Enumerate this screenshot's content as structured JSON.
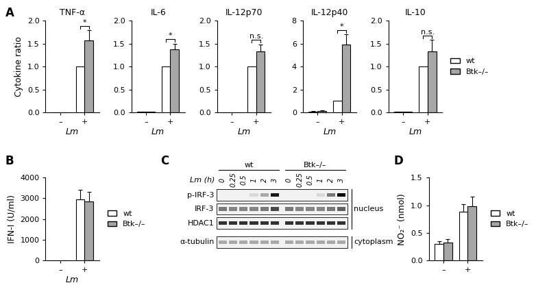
{
  "panel_labels": [
    "A",
    "B",
    "C",
    "D"
  ],
  "chart_data": [
    {
      "type": "bar",
      "title": "TNF-α",
      "categories": [
        "–",
        "+"
      ],
      "x_label": "Lm",
      "y_label": "Cytokine ratio",
      "ylim": [
        0,
        2
      ],
      "yticks": [
        {
          "value": 0,
          "label": "0.0"
        },
        0.5,
        {
          "value": 1,
          "label": "1.0"
        },
        1.5,
        {
          "value": 2,
          "label": "2.0"
        }
      ],
      "series": [
        {
          "color": "#ffffff",
          "values": [
            0,
            1.0
          ],
          "errors": [
            null,
            null
          ]
        },
        {
          "color": "#a6a6a6",
          "values": [
            0,
            1.57
          ],
          "errors": [
            null,
            0.22
          ]
        }
      ],
      "significance": "*"
    },
    {
      "type": "bar",
      "title": "IL-6",
      "categories": [
        "–",
        "+"
      ],
      "x_label": "Lm",
      "ylim": [
        0,
        2
      ],
      "yticks": [
        {
          "value": 0,
          "label": "0.0"
        },
        0.5,
        {
          "value": 1,
          "label": "1.0"
        },
        1.5,
        {
          "value": 2,
          "label": "2.0"
        }
      ],
      "series": [
        {
          "color": "#ffffff",
          "values": [
            0.01,
            1.0
          ],
          "errors": [
            null,
            null
          ]
        },
        {
          "color": "#a6a6a6",
          "values": [
            0.01,
            1.38
          ],
          "errors": [
            null,
            0.12
          ]
        }
      ],
      "significance": "*"
    },
    {
      "type": "bar",
      "title": "IL-12p70",
      "categories": [
        "–",
        "+"
      ],
      "x_label": "Lm",
      "ylim": [
        0,
        2
      ],
      "yticks": [
        {
          "value": 0,
          "label": "0.0"
        },
        0.5,
        {
          "value": 1,
          "label": "1.0"
        },
        1.5,
        {
          "value": 2,
          "label": "2.0"
        }
      ],
      "series": [
        {
          "color": "#ffffff",
          "values": [
            0,
            1.0
          ],
          "errors": [
            null,
            null
          ]
        },
        {
          "color": "#a6a6a6",
          "values": [
            0,
            1.33
          ],
          "errors": [
            null,
            0.15
          ]
        }
      ],
      "significance": "n.s."
    },
    {
      "type": "bar",
      "title": "IL-12p40",
      "categories": [
        "–",
        "+"
      ],
      "x_label": "Lm",
      "ylim": [
        0,
        8
      ],
      "yticks": [
        0,
        2,
        4,
        6,
        8
      ],
      "series": [
        {
          "color": "#ffffff",
          "values": [
            0.08,
            1.0
          ],
          "errors": [
            0.05,
            null
          ]
        },
        {
          "color": "#a6a6a6",
          "values": [
            0.1,
            5.9
          ],
          "errors": [
            0.06,
            0.9
          ]
        }
      ],
      "significance": "*"
    },
    {
      "type": "bar",
      "title": "IL-10",
      "categories": [
        "–",
        "+"
      ],
      "x_label": "Lm",
      "ylim": [
        0,
        2
      ],
      "yticks": [
        {
          "value": 0,
          "label": "0.0"
        },
        0.5,
        {
          "value": 1,
          "label": "1.0"
        },
        1.5,
        {
          "value": 2,
          "label": "2.0"
        }
      ],
      "series": [
        {
          "name": "wt",
          "color": "#ffffff",
          "values": [
            0.02,
            1.0
          ],
          "errors": [
            null,
            null
          ]
        },
        {
          "name": "Btk–/–",
          "color": "#a6a6a6",
          "values": [
            0.02,
            1.33
          ],
          "errors": [
            null,
            0.25
          ]
        }
      ],
      "significance": "n.s.",
      "legend": "center left"
    },
    {
      "type": "bar",
      "categories": [
        "–",
        "+"
      ],
      "x_label": "Lm",
      "y_label": "IFN-I (U/ml)",
      "ylim": [
        0,
        4000
      ],
      "yticks": [
        0,
        1000,
        2000,
        3000,
        4000
      ],
      "series": [
        {
          "name": "wt",
          "color": "#ffffff",
          "values": [
            0,
            2950
          ],
          "errors": [
            null,
            450
          ]
        },
        {
          "name": "Btk–/–",
          "color": "#a6a6a6",
          "values": [
            0,
            2850
          ],
          "errors": [
            null,
            450
          ]
        }
      ],
      "legend": "center left"
    },
    {
      "type": "bar",
      "categories": [
        "–",
        "+"
      ],
      "y_label": "NO₂⁻ (nmol)",
      "ylim": [
        0,
        1.5
      ],
      "yticks": [
        {
          "value": 0,
          "label": "0.0"
        },
        0.5,
        {
          "value": 1,
          "label": "1.0"
        },
        1.5
      ],
      "series": [
        {
          "name": "wt",
          "color": "#ffffff",
          "values": [
            0.3,
            0.88
          ],
          "errors": [
            0.05,
            0.14
          ]
        },
        {
          "name": "Btk–/–",
          "color": "#a6a6a6",
          "values": [
            0.33,
            0.98
          ],
          "errors": [
            0.06,
            0.18
          ]
        }
      ],
      "legend": "center left"
    }
  ],
  "blot": {
    "groups": [
      "wt",
      "Btk–/–"
    ],
    "lane_label": "Lm (h)",
    "lanes": [
      0,
      0.25,
      0.5,
      1,
      2,
      3
    ],
    "rows": [
      {
        "name": "p-IRF-3",
        "fraction": "nucleus",
        "intensity": [
          0,
          0,
          0,
          0.1,
          0.3,
          0.9,
          0,
          0,
          0,
          0.1,
          0.5,
          1.0
        ]
      },
      {
        "name": "IRF-3",
        "fraction": "nucleus",
        "intensity": [
          0.5,
          0.45,
          0.45,
          0.45,
          0.5,
          0.7,
          0.5,
          0.45,
          0.45,
          0.45,
          0.5,
          0.6
        ]
      },
      {
        "name": "HDAC1",
        "fraction": "nucleus",
        "intensity": [
          0.8,
          0.8,
          0.8,
          0.8,
          0.8,
          0.8,
          0.8,
          0.8,
          0.8,
          0.8,
          0.8,
          0.8
        ]
      },
      {
        "name": "α-tubulin",
        "fraction": "cytoplasm",
        "intensity": [
          0.3,
          0.3,
          0.3,
          0.3,
          0.3,
          0.3,
          0.3,
          0.3,
          0.3,
          0.3,
          0.3,
          0.3
        ]
      }
    ]
  }
}
